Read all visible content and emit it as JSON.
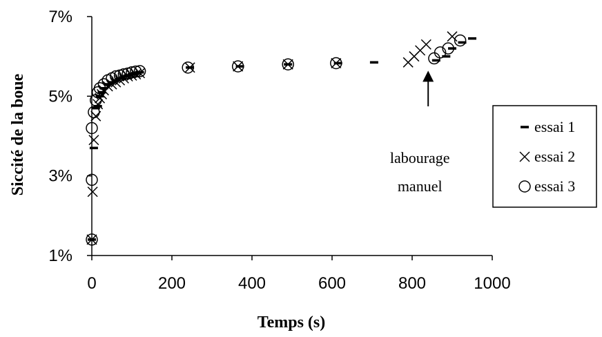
{
  "chart_data": {
    "type": "scatter",
    "title": "",
    "xlabel": "Temps (s)",
    "ylabel": "Siccité de la boue",
    "xlim": [
      0,
      1000
    ],
    "ylim": [
      1,
      7
    ],
    "x_ticks": [
      "0",
      "200",
      "400",
      "600",
      "800",
      "1000"
    ],
    "y_ticks": [
      "1%",
      "3%",
      "5%",
      "7%"
    ],
    "grid": false,
    "legend_position": "right",
    "series": [
      {
        "name": "essai 1",
        "marker": "dash",
        "points": [
          [
            0,
            1.4
          ],
          [
            5,
            3.7
          ],
          [
            10,
            4.7
          ],
          [
            15,
            4.75
          ],
          [
            20,
            5.0
          ],
          [
            25,
            5.1
          ],
          [
            30,
            5.2
          ],
          [
            40,
            5.3
          ],
          [
            50,
            5.35
          ],
          [
            60,
            5.4
          ],
          [
            70,
            5.45
          ],
          [
            80,
            5.5
          ],
          [
            90,
            5.52
          ],
          [
            100,
            5.55
          ],
          [
            110,
            5.57
          ],
          [
            120,
            5.6
          ],
          [
            245,
            5.72
          ],
          [
            370,
            5.75
          ],
          [
            490,
            5.8
          ],
          [
            615,
            5.83
          ],
          [
            705,
            5.85
          ],
          [
            860,
            5.9
          ],
          [
            885,
            6.0
          ],
          [
            900,
            6.2
          ],
          [
            925,
            6.35
          ],
          [
            950,
            6.45
          ]
        ]
      },
      {
        "name": "essai 2",
        "marker": "x",
        "points": [
          [
            0,
            1.4
          ],
          [
            2,
            2.6
          ],
          [
            5,
            3.9
          ],
          [
            10,
            4.5
          ],
          [
            15,
            4.8
          ],
          [
            20,
            4.95
          ],
          [
            25,
            5.05
          ],
          [
            30,
            5.15
          ],
          [
            40,
            5.25
          ],
          [
            50,
            5.3
          ],
          [
            60,
            5.35
          ],
          [
            70,
            5.4
          ],
          [
            80,
            5.45
          ],
          [
            90,
            5.5
          ],
          [
            100,
            5.52
          ],
          [
            110,
            5.55
          ],
          [
            120,
            5.58
          ],
          [
            245,
            5.72
          ],
          [
            365,
            5.75
          ],
          [
            490,
            5.8
          ],
          [
            610,
            5.83
          ],
          [
            790,
            5.85
          ],
          [
            805,
            6.0
          ],
          [
            820,
            6.15
          ],
          [
            835,
            6.3
          ],
          [
            900,
            6.5
          ]
        ]
      },
      {
        "name": "essai 3",
        "marker": "circle",
        "points": [
          [
            0,
            1.4
          ],
          [
            0,
            2.9
          ],
          [
            0,
            4.2
          ],
          [
            5,
            4.6
          ],
          [
            10,
            4.9
          ],
          [
            15,
            5.1
          ],
          [
            20,
            5.2
          ],
          [
            30,
            5.3
          ],
          [
            40,
            5.4
          ],
          [
            50,
            5.45
          ],
          [
            60,
            5.5
          ],
          [
            70,
            5.52
          ],
          [
            80,
            5.55
          ],
          [
            90,
            5.57
          ],
          [
            100,
            5.6
          ],
          [
            110,
            5.62
          ],
          [
            120,
            5.63
          ],
          [
            240,
            5.72
          ],
          [
            365,
            5.75
          ],
          [
            490,
            5.8
          ],
          [
            610,
            5.83
          ],
          [
            855,
            5.95
          ],
          [
            870,
            6.1
          ],
          [
            890,
            6.2
          ],
          [
            920,
            6.4
          ]
        ]
      }
    ],
    "annotation": {
      "line1": "labourage",
      "line2": "manuel",
      "arrow_x": 840,
      "arrow_y_tip": 5.85,
      "arrow_y_tail": 4.85
    }
  }
}
